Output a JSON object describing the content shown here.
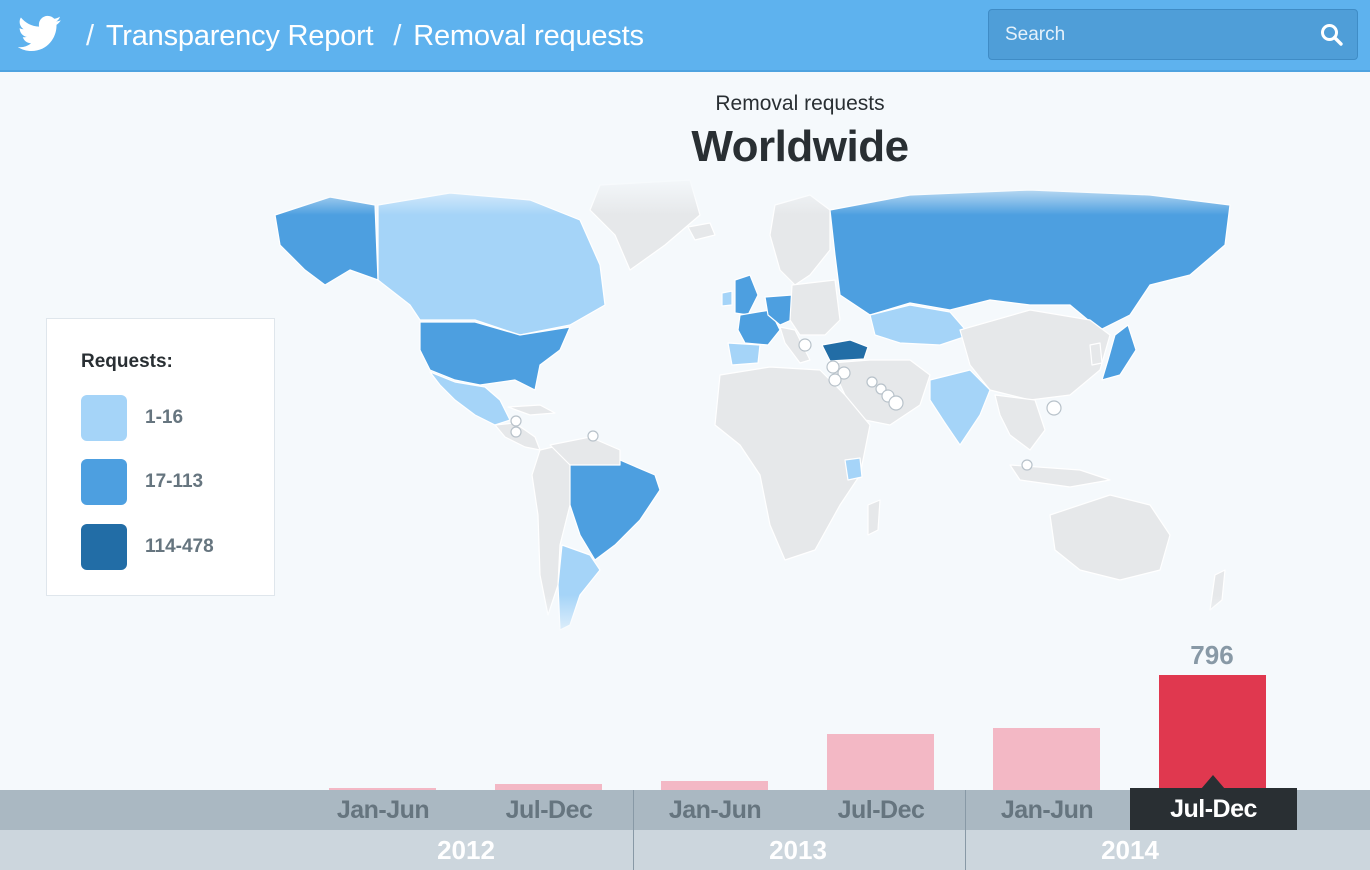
{
  "header": {
    "breadcrumbs": [
      "Transparency Report",
      "Removal requests"
    ],
    "search_placeholder": "Search",
    "brand_color": "#5eb2ee"
  },
  "page": {
    "subtitle": "Removal requests",
    "title": "Worldwide"
  },
  "legend": {
    "title": "Requests:",
    "items": [
      {
        "label": "1-16",
        "color": "#a5d4f8"
      },
      {
        "label": "17-113",
        "color": "#4d9fe0"
      },
      {
        "label": "114-478",
        "color": "#226da6"
      }
    ]
  },
  "timeline": {
    "years": [
      "2012",
      "2013",
      "2014"
    ],
    "periods": [
      "Jan-Jun",
      "Jul-Dec",
      "Jan-Jun",
      "Jul-Dec",
      "Jan-Jun",
      "Jul-Dec"
    ],
    "selected_index": 5
  },
  "chart_data": {
    "type": "bar",
    "categories": [
      "Jan-Jun 2012",
      "Jul-Dec 2012",
      "Jan-Jun 2013",
      "Jul-Dec 2013",
      "Jan-Jun 2014",
      "Jul-Dec 2014"
    ],
    "values": [
      6,
      42,
      60,
      386,
      432,
      796
    ],
    "highlight_label": "796",
    "colors": {
      "normal": "#f3b8c5",
      "selected": "#e0384f"
    }
  }
}
